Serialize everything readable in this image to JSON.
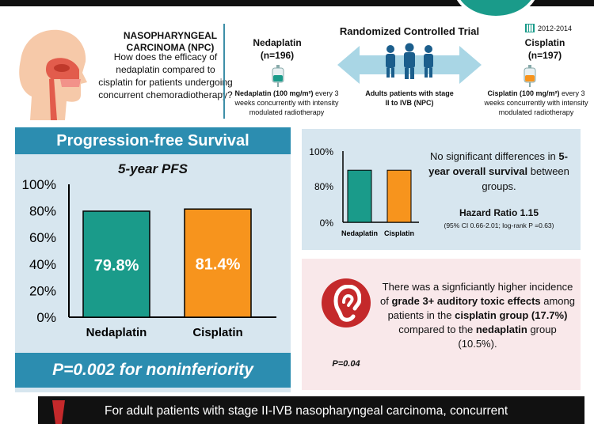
{
  "header": {
    "npc_title": "NASOPHARYNGEAL CARCINOMA (NPC)",
    "question": "How does the efficacy of nedaplatin compared to cisplatin for patients undergoing concurrent chemoradiotherapy?",
    "rct_label": "Randomized Controlled Trial",
    "years": "2012-2014",
    "population": "Adults patients with stage II to IVB (NPC)",
    "nedaplatin": {
      "name": "Nedaplatin",
      "n": "(n=196)",
      "dose_bold": "Nedaplatin (100 mg/m²)",
      "dose_rest": " every 3 weeks concurrently with intensity modulated radiotherapy"
    },
    "cisplatin": {
      "name": "Cisplatin",
      "n": "(n=197)",
      "dose_bold": "Cisplatin (100 mg/m²)",
      "dose_rest": " every 3 weeks concurrently with intensity modulated radiotherapy"
    }
  },
  "pfs": {
    "banner": "Progression-free Survival",
    "subtitle": "5-year PFS",
    "footer": "P=0.002 for noninferiority"
  },
  "os": {
    "text_pre": "No significant differences in ",
    "text_bold": "5-year overall survival",
    "text_post": " between groups.",
    "hr": "Hazard Ratio 1.15",
    "ci": "(95% CI 0.66-2.01; log-rank P =0.63)"
  },
  "ototox": {
    "p": "P=0.04",
    "t1": "There was a signficiantly higher incidence of ",
    "b1": "grade 3+ auditory toxic effects",
    "t2": " among patients in the ",
    "b2": "cisplatin group (17.7%)",
    "t3": " compared to the ",
    "b3": "nedaplatin",
    "t4": " group (10.5%)."
  },
  "conclusion": "For adult patients with stage II-IVB nasopharyngeal carcinoma, concurrent",
  "colors": {
    "nedaplatin": "#1a9b8a",
    "cisplatin": "#f7941d",
    "banner": "#2c8db0",
    "panel": "#d7e6ef",
    "ear": "#c4292b"
  },
  "icons": [
    "head-profile-icon",
    "iv-bag-icon",
    "people-icon",
    "double-arrow-icon",
    "calendar-icon",
    "ear-icon",
    "warning-icon"
  ],
  "chart_data": [
    {
      "type": "bar",
      "title": "5-year PFS",
      "categories": [
        "Nedaplatin",
        "Cisplatin"
      ],
      "values": [
        79.8,
        81.4
      ],
      "value_labels": [
        "79.8%",
        "81.4%"
      ],
      "yticks": [
        "100%",
        "80%",
        "60%",
        "40%",
        "20%",
        "0%"
      ],
      "ylim": [
        0,
        100
      ],
      "colors": [
        "#1a9b8a",
        "#f7941d"
      ]
    },
    {
      "type": "bar",
      "title": "",
      "categories": [
        "Nedaplatin",
        "Cisplatin"
      ],
      "values": [
        89,
        89
      ],
      "yticks": [
        "100%",
        "80%",
        "0%"
      ],
      "ylim": [
        0,
        100
      ],
      "colors": [
        "#1a9b8a",
        "#f7941d"
      ]
    }
  ]
}
